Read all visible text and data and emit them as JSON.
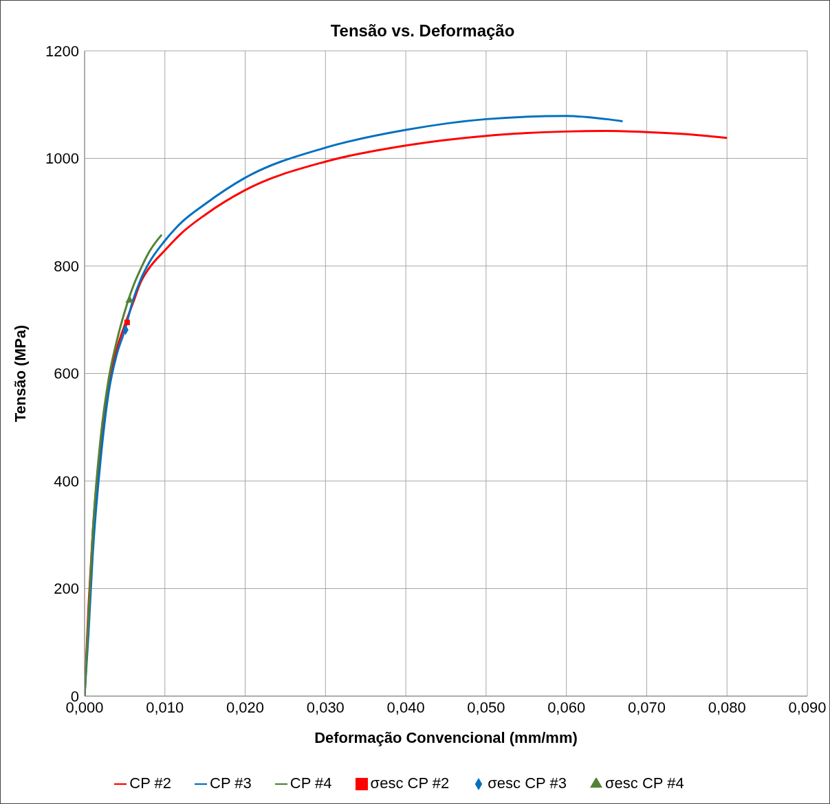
{
  "chart_data": {
    "type": "line",
    "title": "Tensão vs. Deformação",
    "xlabel": "Deformação Convencional (mm/mm)",
    "ylabel": "Tensão (MPa)",
    "xlim": [
      0,
      0.09
    ],
    "xticks": [
      {
        "value": 0,
        "label": "0,000"
      },
      {
        "value": 0.01,
        "label": "0,010"
      },
      {
        "value": 0.02,
        "label": "0,020"
      },
      {
        "value": 0.03,
        "label": "0,030"
      },
      {
        "value": 0.04,
        "label": "0,040"
      },
      {
        "value": 0.05,
        "label": "0,050"
      },
      {
        "value": 0.06,
        "label": "0,060"
      },
      {
        "value": 0.07,
        "label": "0,070"
      },
      {
        "value": 0.08,
        "label": "0,080"
      },
      {
        "value": 0.09,
        "label": "0,090"
      }
    ],
    "ylim": [
      0,
      1200
    ],
    "yticks": [
      0,
      200,
      400,
      600,
      800,
      1000,
      1200
    ],
    "grid": true,
    "legend": "bottom",
    "marker": "none",
    "line_style": "solid",
    "series": [
      {
        "name": "CP #2",
        "color": "#ff0000",
        "x": [
          0,
          0.0005,
          0.001,
          0.002,
          0.003,
          0.004,
          0.005,
          0.006,
          0.007,
          0.008,
          0.01,
          0.012,
          0.015,
          0.02,
          0.03,
          0.04,
          0.05,
          0.06,
          0.065,
          0.07,
          0.075,
          0.08
        ],
        "values": [
          0,
          170,
          300,
          470,
          580,
          645,
          690,
          730,
          770,
          795,
          829,
          860,
          895,
          941,
          994,
          1024,
          1042,
          1050,
          1051,
          1049,
          1045,
          1038
        ]
      },
      {
        "name": "CP #3",
        "color": "#0070c0",
        "x": [
          0,
          0.0005,
          0.001,
          0.002,
          0.003,
          0.004,
          0.005,
          0.006,
          0.007,
          0.008,
          0.01,
          0.012,
          0.015,
          0.02,
          0.03,
          0.04,
          0.05,
          0.06,
          0.065,
          0.067
        ],
        "values": [
          0,
          120,
          260,
          440,
          565,
          635,
          680,
          735,
          775,
          805,
          847,
          880,
          915,
          964,
          1020,
          1053,
          1073,
          1079,
          1073,
          1069
        ]
      },
      {
        "name": "CP #4",
        "color": "#548235",
        "x": [
          0,
          0.0005,
          0.001,
          0.002,
          0.003,
          0.004,
          0.005,
          0.006,
          0.007,
          0.008,
          0.0096
        ],
        "values": [
          0,
          150,
          300,
          480,
          590,
          660,
          715,
          760,
          795,
          825,
          858
        ]
      },
      {
        "name": "σesc CP #2",
        "type": "scatter",
        "marker": "square",
        "color": "#ff0000",
        "x": [
          0.0053
        ],
        "values": [
          695
        ]
      },
      {
        "name": "σesc CP #3",
        "type": "scatter",
        "marker": "diamond",
        "color": "#0070c0",
        "x": [
          0.0051
        ],
        "values": [
          681
        ]
      },
      {
        "name": "σesc CP #4",
        "type": "scatter",
        "marker": "triangle",
        "color": "#548235",
        "x": [
          0.0056
        ],
        "values": [
          736
        ]
      }
    ]
  }
}
